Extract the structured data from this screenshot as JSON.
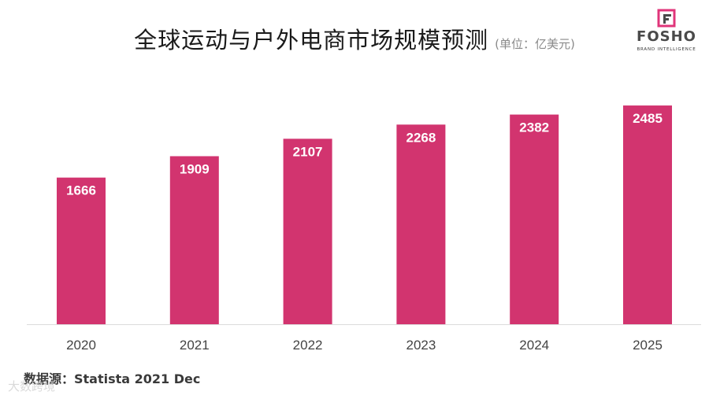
{
  "header": {
    "title": "全球运动与户外电商市场规模预测",
    "unit": "(单位：亿美元)"
  },
  "logo": {
    "word": "FOSHO",
    "sub": "BRAND INTELLIGENCE",
    "name": "fosho-logo"
  },
  "source": "数据源：Statista 2021 Dec",
  "watermark": "大数跨境",
  "colors": {
    "bar": "#d2346f",
    "label": "#ffffff",
    "axis": "#dcdcdc",
    "tick": "#444444",
    "logo_accent": "#e0357a"
  },
  "chart_data": {
    "type": "bar",
    "title": "全球运动与户外电商市场规模预测",
    "xlabel": "",
    "ylabel": "",
    "categories": [
      "2020",
      "2021",
      "2022",
      "2023",
      "2024",
      "2025"
    ],
    "values": [
      1666,
      1909,
      2107,
      2268,
      2382,
      2485
    ],
    "ylim": [
      0,
      2700
    ],
    "grid": false,
    "legend": "none"
  }
}
